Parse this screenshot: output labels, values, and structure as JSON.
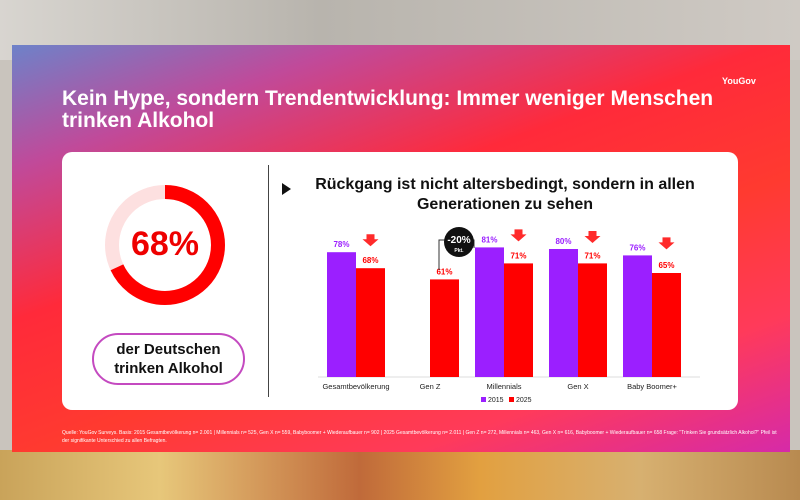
{
  "header": {
    "logo": "YouGov",
    "title": "Kein Hype, sondern Trendentwicklung: Immer weniger Menschen trinken Alkohol"
  },
  "kpi": {
    "value": "68%",
    "fraction": 0.68,
    "label": "der Deutschen trinken Alkohol"
  },
  "footnote": "Quelle: YouGov Surveys. Basis: 2015 Gesamtbevölkerung n= 2.001 | Millennials n= 525, Gen X n= 559, Babyboomer + Wiederaufbauer n= 902 | 2025 Gesamtbevölkerung n= 2.011 | Gen Z n= 272, Millennials n= 463, Gen X n= 616, Babyboomer + Wiederaufbauer n= 658 Frage: \"Trinken Sie grundsätzlich Alkohol?\" Pfeil ist der signifikante Unterschied zu allen Befragten.",
  "colors": {
    "s2015": "#9b1fff",
    "s2025": "#ff0000"
  },
  "chart_data": {
    "type": "bar",
    "title": "Rückgang ist nicht altersbedingt, sondern in allen Generationen zu sehen",
    "categories": [
      "Gesamtbevölkerung",
      "Gen Z",
      "Millennials",
      "Gen X",
      "Baby Boomer+"
    ],
    "series": [
      {
        "name": "2015",
        "values": [
          78,
          null,
          81,
          80,
          76
        ]
      },
      {
        "name": "2025",
        "values": [
          68,
          61,
          71,
          71,
          65
        ]
      }
    ],
    "labels_2015": [
      "78%",
      "",
      "81%",
      "80%",
      "76%"
    ],
    "labels_2025": [
      "68%",
      "61%",
      "71%",
      "71%",
      "65%"
    ],
    "decline_arrows": [
      true,
      false,
      true,
      true,
      true
    ],
    "annotation": {
      "value": "-20%",
      "unit": "Pkt."
    },
    "ylim": [
      0,
      100
    ],
    "legend": "bottom",
    "grid": false
  }
}
